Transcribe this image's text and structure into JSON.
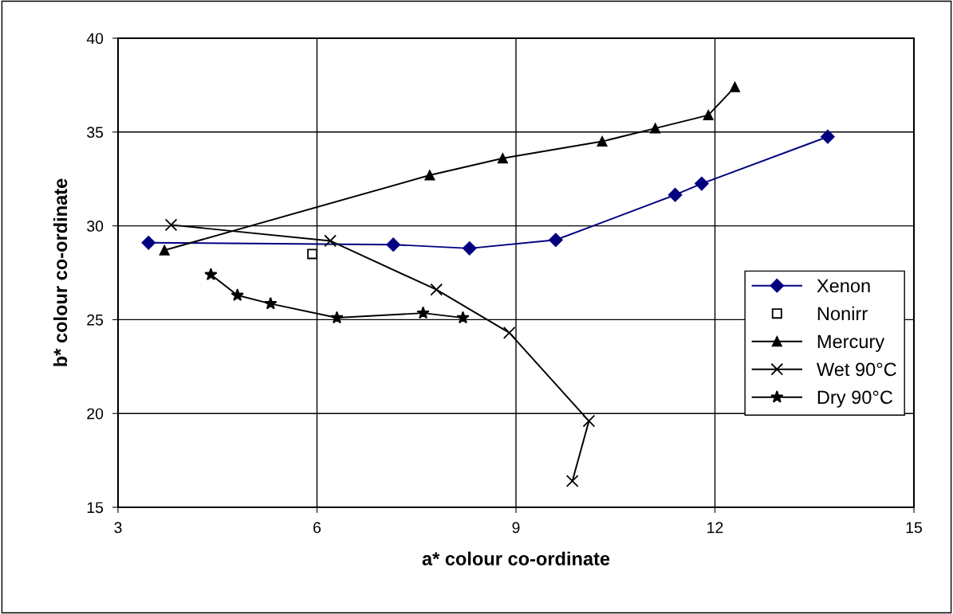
{
  "chart_data": {
    "type": "line",
    "xlabel": "a* colour co-ordinate",
    "ylabel": "b* colour co-ordinate",
    "xlim": [
      3,
      15
    ],
    "xticks": [
      3,
      6,
      9,
      12,
      15
    ],
    "ylim": [
      15,
      40
    ],
    "yticks": [
      15,
      20,
      25,
      30,
      35,
      40
    ],
    "grid": true,
    "legend": "right",
    "line_style": "solid",
    "series": [
      {
        "name": "Xenon",
        "color": "#000080",
        "marker": "diamond",
        "x": [
          3.46,
          7.15,
          8.3,
          9.6,
          11.4,
          11.8,
          13.7
        ],
        "values": [
          29.1,
          29.0,
          28.8,
          29.25,
          31.65,
          32.25,
          34.75
        ]
      },
      {
        "name": "Nonirr",
        "type": "scatter",
        "color": "#000000",
        "marker": "square",
        "x": [
          5.93
        ],
        "values": [
          28.5
        ]
      },
      {
        "name": "Mercury",
        "color": "#000000",
        "marker": "triangle",
        "x": [
          3.7,
          7.7,
          8.8,
          10.3,
          11.1,
          11.9,
          12.3
        ],
        "values": [
          28.7,
          32.7,
          33.6,
          34.5,
          35.2,
          35.9,
          37.4
        ]
      },
      {
        "name": "Wet 90°C",
        "color": "#000000",
        "marker": "cross",
        "x": [
          3.8,
          6.2,
          7.8,
          8.9,
          10.1,
          9.85
        ],
        "values": [
          30.05,
          29.2,
          26.6,
          24.3,
          19.6,
          16.4
        ]
      },
      {
        "name": "Dry 90°C",
        "color": "#000000",
        "marker": "star",
        "x": [
          4.4,
          4.8,
          5.3,
          6.3,
          7.6,
          8.2
        ],
        "values": [
          27.4,
          26.3,
          25.85,
          25.1,
          25.35,
          25.1
        ]
      }
    ]
  }
}
